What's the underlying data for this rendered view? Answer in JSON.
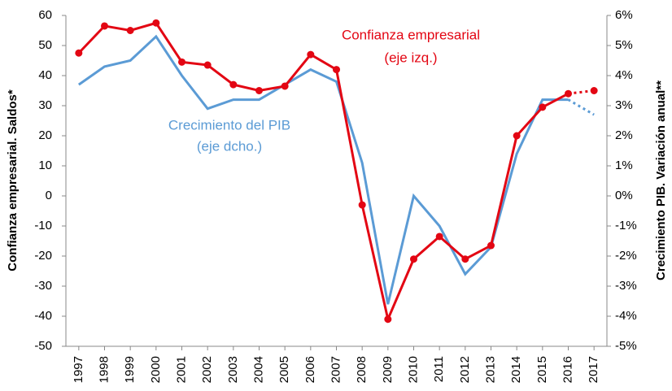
{
  "chart_data": {
    "type": "line",
    "categories": [
      "1997",
      "1998",
      "1999",
      "2000",
      "2001",
      "2002",
      "2003",
      "2004",
      "2005",
      "2006",
      "2007",
      "2008",
      "2009",
      "2010",
      "2011",
      "2012",
      "2013",
      "2014",
      "2015",
      "2016",
      "2017"
    ],
    "series": [
      {
        "name": "Confianza empresarial",
        "color": "#e30613",
        "markers": true,
        "values": [
          47.5,
          56.5,
          55,
          57.5,
          44.5,
          43.5,
          37,
          35,
          36.5,
          47,
          42,
          -3,
          -41,
          -21,
          -13.5,
          -21,
          -16.5,
          20,
          29.5,
          34,
          35
        ]
      },
      {
        "name": "Crecimiento del PIB",
        "color": "#5b9bd5",
        "axis": "y2",
        "markers": false,
        "values": [
          3.7,
          4.3,
          4.5,
          5.3,
          4.0,
          2.9,
          3.2,
          3.2,
          3.7,
          4.2,
          3.8,
          1.1,
          -3.6,
          0.0,
          -1.0,
          -2.6,
          -1.7,
          1.4,
          3.2,
          3.2,
          2.7
        ]
      }
    ],
    "annotations": [
      "(eje izq.)",
      "(eje dcho.)"
    ],
    "projection_from": "2016",
    "ylabel": "Confianza empresarial. Saldos*",
    "y2label": "Crecimiento PIB. Variación anual**",
    "ylim": [
      -50,
      60
    ],
    "yticks": [
      -50,
      -40,
      -30,
      -20,
      -10,
      0,
      10,
      20,
      30,
      40,
      50,
      60
    ],
    "y2lim": [
      -5,
      6
    ],
    "y2ticks": [
      {
        "value": -5,
        "label": "-5%"
      },
      {
        "value": -4,
        "label": "-4%"
      },
      {
        "value": -3,
        "label": "-3%"
      },
      {
        "value": -2,
        "label": "-2%"
      },
      {
        "value": -1,
        "label": "-1%"
      },
      {
        "value": 0,
        "label": "0%"
      },
      {
        "value": 1,
        "label": "1%"
      },
      {
        "value": 2,
        "label": "2%"
      },
      {
        "value": 3,
        "label": "3%"
      },
      {
        "value": 4,
        "label": "4%"
      },
      {
        "value": 5,
        "label": "5%"
      },
      {
        "value": 6,
        "label": "6%"
      }
    ],
    "grid": false
  }
}
